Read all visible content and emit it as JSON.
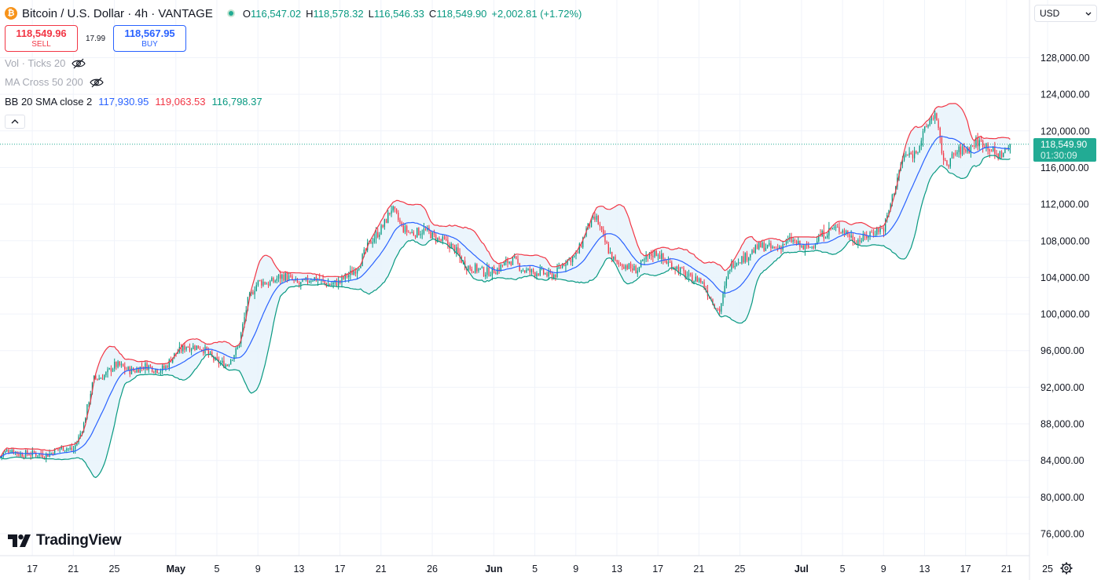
{
  "header": {
    "logo_glyph": "₿",
    "title": "Bitcoin / U.S. Dollar · 4h · VANTAGE",
    "ohlc": [
      {
        "key": "O",
        "value": "116,547.02"
      },
      {
        "key": "H",
        "value": "118,578.32"
      },
      {
        "key": "L",
        "value": "116,546.33"
      },
      {
        "key": "C",
        "value": "118,549.90"
      }
    ],
    "change": "+2,002.81 (+1.72%)"
  },
  "trade": {
    "sell_price": "118,549.96",
    "sell_label": "SELL",
    "spread": "17.99",
    "buy_price": "118,567.95",
    "buy_label": "BUY"
  },
  "indicators": {
    "vol": "Vol · Ticks 20",
    "ma": "MA Cross 50 200",
    "bb_name": "BB 20 SMA close 2",
    "bb_mid": "117,930.95",
    "bb_upper": "119,063.53",
    "bb_lower": "116,798.37"
  },
  "currency": "USD",
  "last_price": {
    "price": "118,549.90",
    "countdown": "01:30:09"
  },
  "brand": "TradingView",
  "icons": {
    "eye": "eye-slash-icon",
    "collapse": "chevron-up-icon",
    "currency_chevron": "chevron-down-icon",
    "settings": "gear-icon",
    "status": "market-status-icon",
    "logo": "bitcoin-icon"
  },
  "colors": {
    "up": "#089981",
    "down": "#f23645",
    "bb_mid": "#2962ff",
    "bb_upper": "#f23645",
    "bb_lower": "#089981",
    "band_fill": "#e8f3fb",
    "last_price": "#22ab94"
  },
  "chart_data": {
    "type": "candlestick",
    "interval": "4h",
    "y_ticks": [
      76000,
      80000,
      84000,
      88000,
      92000,
      96000,
      100000,
      104000,
      108000,
      112000,
      116000,
      120000,
      124000,
      128000
    ],
    "y_tick_labels": [
      "76,000.00",
      "80,000.00",
      "84,000.00",
      "88,000.00",
      "92,000.00",
      "96,000.00",
      "100,000.00",
      "104,000.00",
      "108,000.00",
      "112,000.00",
      "116,000.00",
      "120,000.00",
      "124,000.00",
      "128,000.00"
    ],
    "ylim": [
      73600,
      134300
    ],
    "x_tick_labels": [
      "17",
      "21",
      "25",
      "May",
      "5",
      "9",
      "13",
      "17",
      "21",
      "26",
      "Jun",
      "5",
      "9",
      "13",
      "17",
      "21",
      "25",
      "Jul",
      "5",
      "9",
      "13",
      "17",
      "21",
      "25"
    ],
    "x_tick_dates": [
      "Apr 17",
      "Apr 21",
      "Apr 25",
      "May 1",
      "May 5",
      "May 9",
      "May 13",
      "May 17",
      "May 21",
      "May 26",
      "Jun 1",
      "Jun 5",
      "Jun 9",
      "Jun 13",
      "Jun 17",
      "Jun 21",
      "Jun 25",
      "Jul 1",
      "Jul 5",
      "Jul 9",
      "Jul 13",
      "Jul 17",
      "Jul 21",
      "Jul 25"
    ],
    "last_price": 118549.9,
    "close_path": {
      "description": "approximate closing price at each date",
      "dates": [
        "Apr 13",
        "Apr 15",
        "Apr 17",
        "Apr 19",
        "Apr 21",
        "Apr 22",
        "Apr 23",
        "Apr 25",
        "Apr 27",
        "Apr 30",
        "May 2",
        "May 4",
        "May 6",
        "May 7",
        "May 8",
        "May 9",
        "May 11",
        "May 13",
        "May 15",
        "May 17",
        "May 19",
        "May 21",
        "May 22",
        "May 23",
        "May 25",
        "May 27",
        "May 29",
        "May 31",
        "Jun 1",
        "Jun 3",
        "Jun 5",
        "Jun 7",
        "Jun 9",
        "Jun 10",
        "Jun 11",
        "Jun 13",
        "Jun 15",
        "Jun 17",
        "Jun 19",
        "Jun 21",
        "Jun 22",
        "Jun 23",
        "Jun 24",
        "Jun 26",
        "Jun 28",
        "Jun 30",
        "Jul 2",
        "Jul 4",
        "Jul 6",
        "Jul 8",
        "Jul 9",
        "Jul 10",
        "Jul 11",
        "Jul 12",
        "Jul 14",
        "Jul 15",
        "Jul 17",
        "Jul 18",
        "Jul 20",
        "Jul 22"
      ],
      "values": [
        83600,
        85200,
        84500,
        85000,
        85400,
        87800,
        92800,
        94200,
        94000,
        94200,
        96800,
        95800,
        94200,
        96200,
        101500,
        103200,
        104000,
        103500,
        103700,
        103200,
        105800,
        109500,
        111500,
        109300,
        108900,
        108200,
        105800,
        104300,
        105000,
        105700,
        104300,
        104500,
        106500,
        109200,
        110200,
        105200,
        105100,
        106800,
        104600,
        103800,
        101800,
        100600,
        105000,
        106900,
        107300,
        107800,
        107300,
        109700,
        108200,
        108700,
        109500,
        113500,
        117000,
        117800,
        121800,
        116500,
        118000,
        119000,
        117500,
        118500
      ]
    },
    "bollinger": {
      "period": 20,
      "source": "close",
      "mult": 2,
      "mid_last": 117930.95,
      "upper_last": 119063.53,
      "lower_last": 116798.37
    }
  }
}
